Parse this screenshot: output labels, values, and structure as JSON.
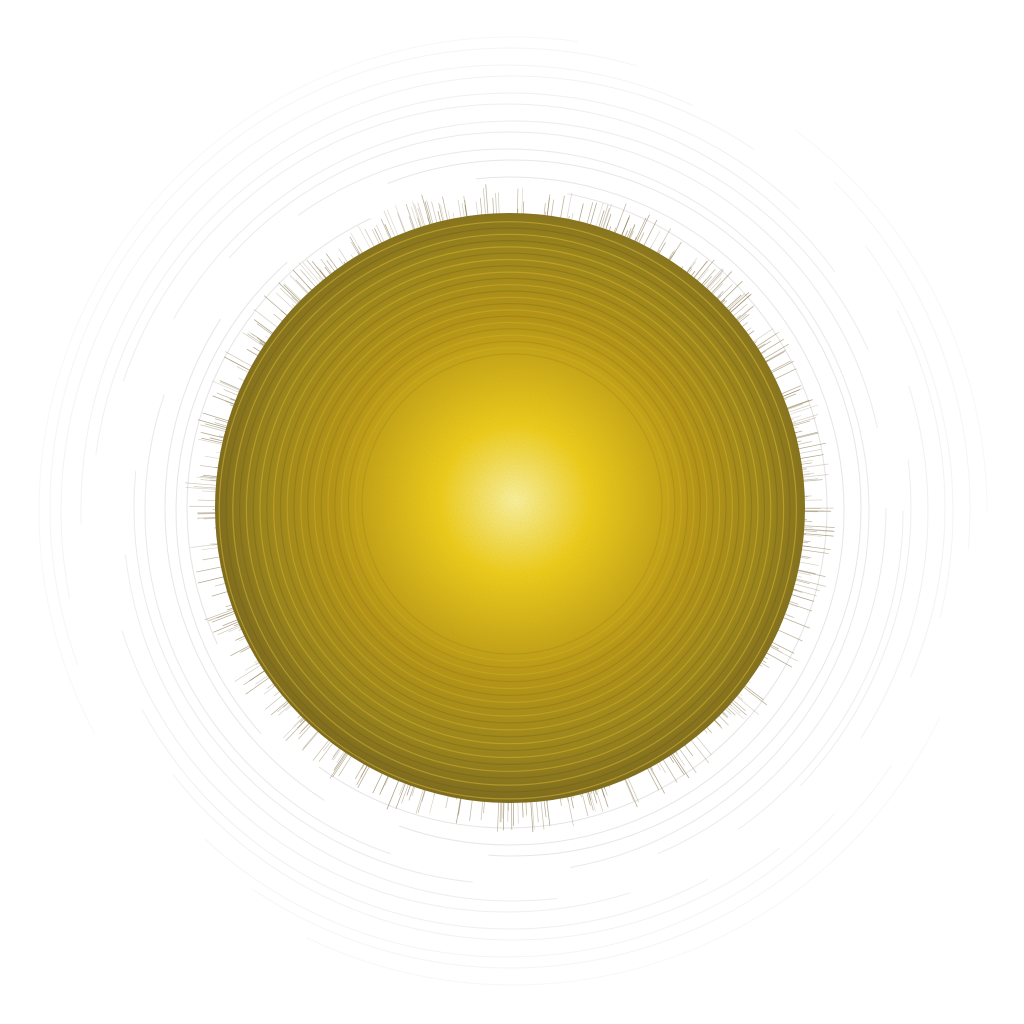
{
  "image": {
    "subject": "golden-sphere",
    "colors": {
      "background": "#ffffff",
      "core": "#fff6a8",
      "mid": "#f2cf1e",
      "outer": "#b8961a",
      "edge": "#7d6a22",
      "fuzz": "#8a7a50",
      "halo_rings": "#d8d8d8"
    }
  }
}
